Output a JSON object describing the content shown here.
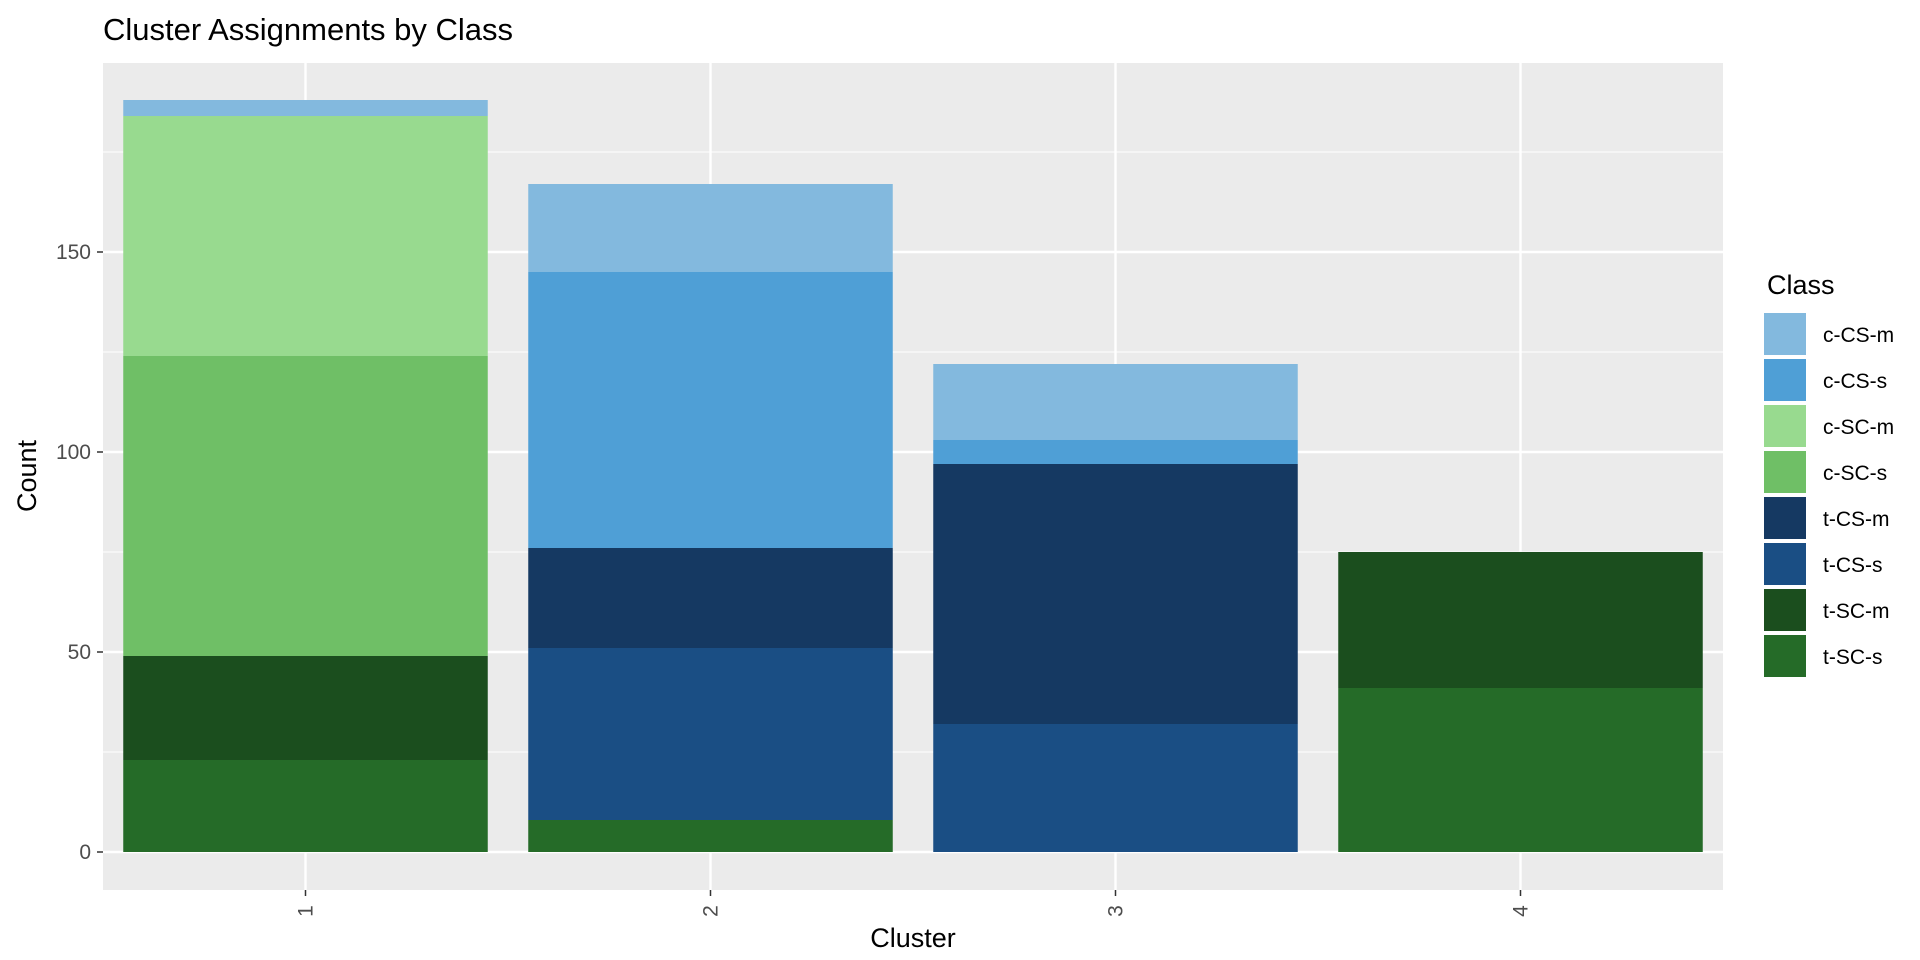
{
  "chart_data": {
    "type": "bar",
    "stacked": true,
    "title": "Cluster Assignments by Class",
    "xlabel": "Cluster",
    "ylabel": "Count",
    "categories": [
      "1",
      "2",
      "3",
      "4"
    ],
    "ylim": [
      0,
      189
    ],
    "yticks": [
      0,
      50,
      100,
      150
    ],
    "grid": true,
    "legend": {
      "title": "Class",
      "position": "right"
    },
    "series": [
      {
        "name": "c-CS-m",
        "color": "#83B9DE",
        "values": [
          4,
          22,
          19,
          0
        ]
      },
      {
        "name": "c-CS-s",
        "color": "#4F9FD6",
        "values": [
          0,
          69,
          6,
          0
        ]
      },
      {
        "name": "c-SC-m",
        "color": "#98DA8F",
        "values": [
          60,
          0,
          0,
          0
        ]
      },
      {
        "name": "c-SC-s",
        "color": "#6FBF66",
        "values": [
          75,
          0,
          0,
          0
        ]
      },
      {
        "name": "t-CS-m",
        "color": "#153962",
        "values": [
          0,
          25,
          65,
          0
        ]
      },
      {
        "name": "t-CS-s",
        "color": "#1A4E84",
        "values": [
          0,
          43,
          32,
          0
        ]
      },
      {
        "name": "t-SC-m",
        "color": "#1B4E1E",
        "values": [
          26,
          0,
          0,
          34
        ]
      },
      {
        "name": "t-SC-s",
        "color": "#256B28",
        "values": [
          23,
          8,
          0,
          41
        ]
      }
    ]
  },
  "colors": {
    "panel_background": "#EBEBEB",
    "grid": "#FFFFFF",
    "tick_text": "#4D4D4D",
    "tick_mark": "#333333"
  }
}
